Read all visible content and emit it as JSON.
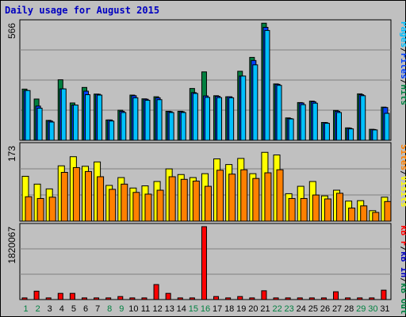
{
  "title": "Daily usage for August 2015",
  "colors": {
    "hits": "#008040",
    "files": "#0040ff",
    "pages": "#00c0ff",
    "visits": "#ffff00",
    "sites": "#ff8000",
    "kb_f": "#ff0000",
    "kb_in": "#0000c0",
    "kb_out": "#008040",
    "title": "#0000c0",
    "weekday_label": "#008040",
    "weekend_label": "#008040"
  },
  "right_labels": {
    "top": [
      {
        "text": "Pages",
        "color_key": "pages"
      },
      {
        "text": "/",
        "color_key": null
      },
      {
        "text": "Files",
        "color_key": "files"
      },
      {
        "text": "/",
        "color_key": null
      },
      {
        "text": "Hits",
        "color_key": "hits"
      }
    ],
    "middle": [
      {
        "text": "Sites",
        "color_key": "sites"
      },
      {
        "text": "/",
        "color_key": null
      },
      {
        "text": "Visits",
        "color_key": "visits"
      }
    ],
    "bottom": [
      {
        "text": "kB F",
        "color_key": "kb_f"
      },
      {
        "text": "/",
        "color_key": null
      },
      {
        "text": "kB In",
        "color_key": "kb_in"
      },
      {
        "text": "/",
        "color_key": null
      },
      {
        "text": "kB Out",
        "color_key": "kb_out"
      }
    ]
  },
  "chart_data": {
    "type": "bar",
    "title": "Daily usage for August 2015",
    "categories": [
      "1",
      "2",
      "3",
      "4",
      "5",
      "6",
      "7",
      "8",
      "9",
      "10",
      "11",
      "12",
      "13",
      "14",
      "15",
      "16",
      "17",
      "18",
      "19",
      "20",
      "21",
      "22",
      "23",
      "24",
      "25",
      "26",
      "27",
      "28",
      "29",
      "30",
      "31"
    ],
    "weekend_days": [
      "1",
      "2",
      "8",
      "9",
      "15",
      "16",
      "22",
      "23",
      "29",
      "30"
    ],
    "panels": [
      {
        "name": "hits-files-pages",
        "max_label": "566",
        "ylim": [
          0,
          566
        ],
        "series": [
          {
            "name": "Hits",
            "color_key": "hits",
            "values": [
              247,
              199,
              96,
              292,
              180,
              255,
              223,
              98,
              145,
              218,
              200,
              210,
              140,
              140,
              250,
              330,
              215,
              210,
              333,
              400,
              565,
              272,
              108,
              182,
              189,
              86,
              144,
              60,
              224,
              53,
              160
            ]
          },
          {
            "name": "Files",
            "color_key": "files",
            "values": [
              240,
              165,
              93,
              248,
              170,
              237,
              222,
              98,
              140,
              215,
              198,
              205,
              138,
              138,
              230,
              214,
              212,
              210,
              310,
              385,
              545,
              270,
              105,
              180,
              186,
              85,
              140,
              58,
              220,
              52,
              158
            ]
          },
          {
            "name": "Pages",
            "color_key": "pages",
            "values": [
              240,
              155,
              88,
              248,
              170,
              220,
              218,
              93,
              134,
              205,
              193,
              196,
              134,
              134,
              226,
              207,
              206,
              205,
              310,
              364,
              530,
              265,
              103,
              172,
              179,
              82,
              134,
              55,
              215,
              50,
              130
            ]
          }
        ]
      },
      {
        "name": "visits-sites",
        "max_label": "173",
        "ylim": [
          0,
          173
        ],
        "series": [
          {
            "name": "Visits",
            "color_key": "visits",
            "values": [
              103,
              85,
              74,
              127,
              148,
              126,
              136,
              82,
              100,
              76,
              81,
              91,
              120,
              107,
              100,
              109,
              143,
              130,
              144,
              109,
              158,
              152,
              63,
              80,
              91,
              58,
              71,
              46,
              47,
              24,
              55
            ]
          },
          {
            "name": "Sites",
            "color_key": "sites",
            "values": [
              56,
              52,
              55,
              112,
              123,
              114,
              102,
              73,
              85,
              66,
              62,
              71,
              102,
              96,
              92,
              80,
              117,
              108,
              118,
              98,
              111,
              118,
              52,
              52,
              60,
              51,
              64,
              30,
              35,
              20,
              45
            ]
          }
        ]
      },
      {
        "name": "kbytes",
        "max_label": "1820067",
        "ylim": [
          0,
          1820067
        ],
        "series": [
          {
            "name": "kB F",
            "color_key": "kb_f",
            "values": [
              42000,
              210000,
              42000,
              155000,
              155000,
              42000,
              42000,
              42000,
              76000,
              42000,
              42000,
              375000,
              155000,
              42000,
              42000,
              1820067,
              76000,
              42000,
              76000,
              42000,
              220000,
              42000,
              42000,
              42000,
              42000,
              42000,
              195000,
              42000,
              42000,
              42000,
              235000
            ]
          },
          {
            "name": "kB In",
            "color_key": "kb_in",
            "values": [
              0,
              0,
              0,
              0,
              0,
              0,
              0,
              0,
              0,
              0,
              0,
              0,
              0,
              0,
              0,
              0,
              0,
              0,
              0,
              0,
              0,
              0,
              0,
              0,
              0,
              0,
              0,
              0,
              0,
              0,
              0
            ]
          },
          {
            "name": "kB Out",
            "color_key": "kb_out",
            "values": [
              0,
              0,
              0,
              0,
              0,
              0,
              0,
              0,
              0,
              0,
              0,
              0,
              0,
              0,
              0,
              0,
              0,
              0,
              0,
              0,
              0,
              0,
              0,
              0,
              0,
              0,
              0,
              0,
              0,
              0,
              0
            ]
          }
        ]
      }
    ]
  }
}
